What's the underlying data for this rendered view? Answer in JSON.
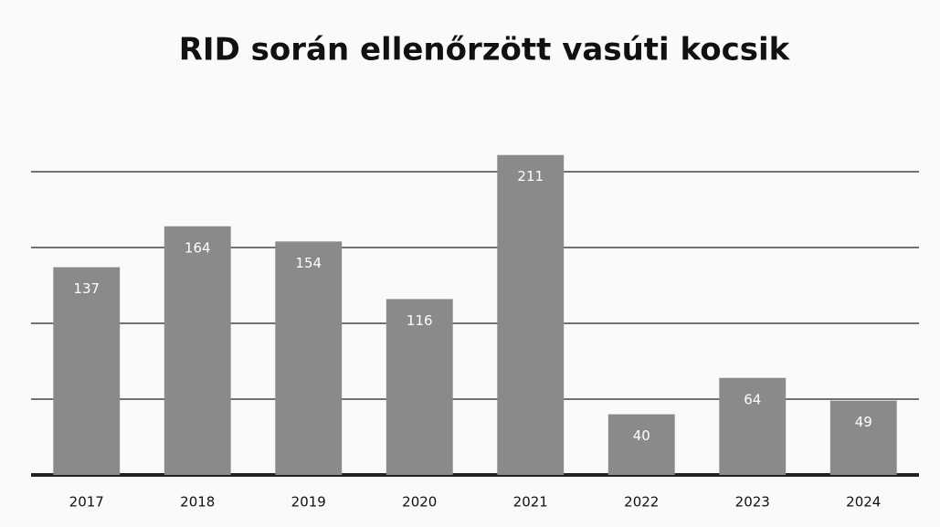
{
  "chart_data": {
    "type": "bar",
    "title": "RID során ellenőrzött vasúti kocsik",
    "categories": [
      "2017",
      "2018",
      "2019",
      "2020",
      "2021",
      "2022",
      "2023",
      "2024"
    ],
    "values": [
      137,
      164,
      154,
      116,
      211,
      40,
      64,
      49
    ],
    "color": "#8a8a8a",
    "ylim": [
      0,
      250
    ],
    "yticks": [
      0,
      50,
      100,
      150,
      200
    ],
    "grid": true
  }
}
